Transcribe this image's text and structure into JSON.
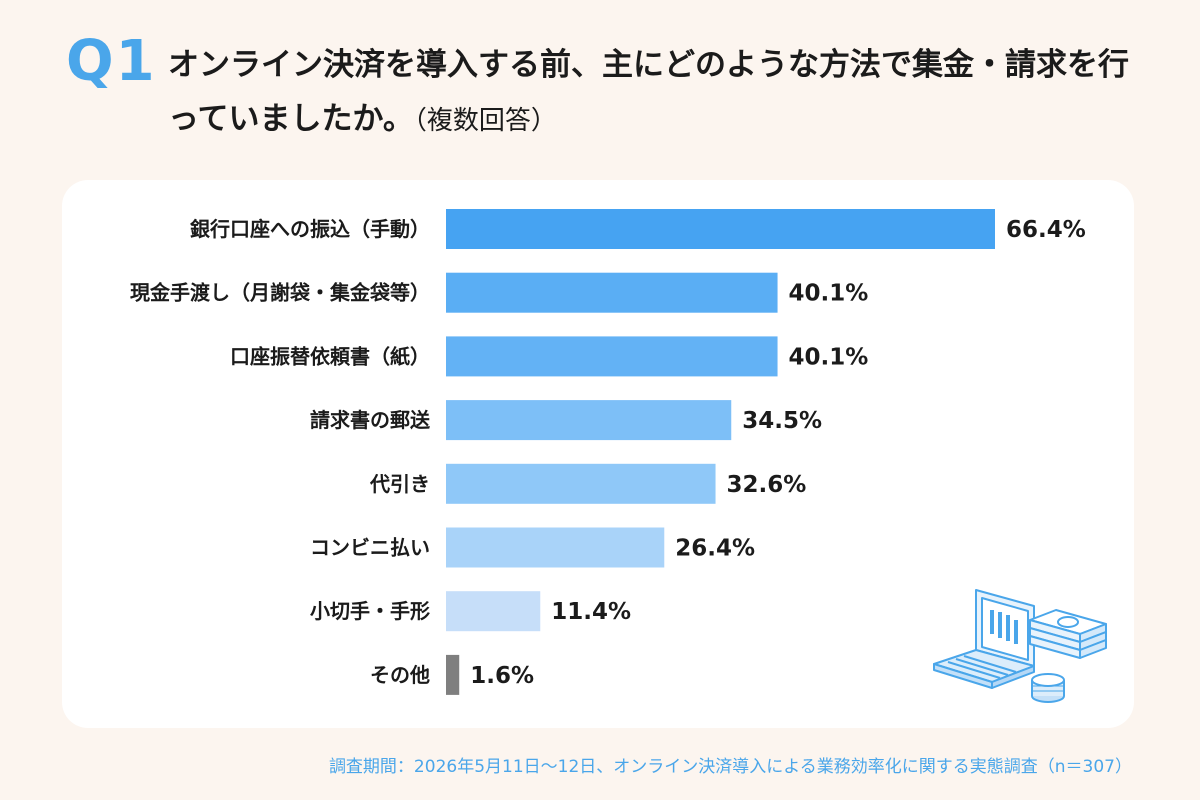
{
  "header": {
    "q_label": "Q1",
    "question": "オンライン決済を導入する前、主にどのような方法で集金・請求を行っていましたか。",
    "note": "（複数回答）"
  },
  "footnote": "調査期間：2026年5月11日～12日、オンライン決済導入による業務効率化に関する実態調査（n＝307）",
  "colors": {
    "background": "#fcf5ef",
    "card": "#ffffff",
    "accent": "#4aa6ea",
    "other_bar": "#7f7f7f",
    "text": "#1b1b1b"
  },
  "illustration": {
    "icon": "laptop-money-icon"
  },
  "chart_data": {
    "type": "bar",
    "orientation": "horizontal",
    "unit": "%",
    "categories": [
      "銀行口座への振込（手動）",
      "現金手渡し（月謝袋・集金袋等）",
      "口座振替依頼書（紙）",
      "請求書の郵送",
      "代引き",
      "コンビニ払い",
      "小切手・手形",
      "その他"
    ],
    "values": [
      66.4,
      40.1,
      40.1,
      34.5,
      32.6,
      26.4,
      11.4,
      1.6
    ],
    "value_labels": [
      "66.4%",
      "40.1%",
      "40.1%",
      "34.5%",
      "32.6%",
      "26.4%",
      "11.4%",
      "1.6%"
    ],
    "bar_colors": [
      "#46a3f2",
      "#5aaef4",
      "#63b2f5",
      "#7dbff7",
      "#8fc8f8",
      "#a9d3f9",
      "#c6def9",
      "#7f7f7f"
    ],
    "xlim": [
      0,
      66.4
    ],
    "grid": false,
    "legend": "none"
  }
}
